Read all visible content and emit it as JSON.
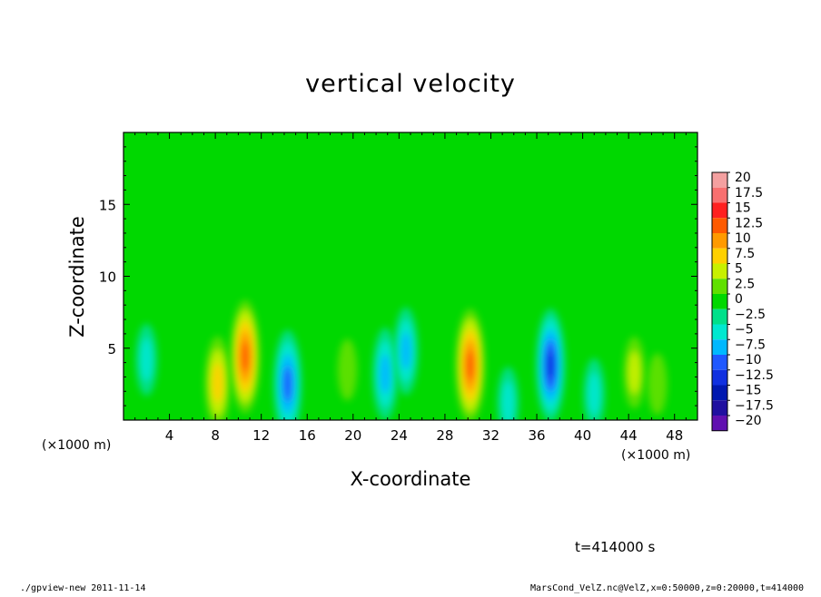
{
  "chart_data": {
    "type": "heatmap",
    "title": "vertical velocity",
    "xlabel": "X-coordinate",
    "ylabel": "Z-coordinate",
    "x_unit": "(×1000 m)",
    "y_unit": "(×1000 m)",
    "xlim": [
      0,
      50
    ],
    "ylim": [
      0,
      20
    ],
    "xticks": [
      4,
      8,
      12,
      16,
      20,
      24,
      28,
      32,
      36,
      40,
      44,
      48
    ],
    "yticks": [
      5,
      10,
      15
    ],
    "colorbar": {
      "levels": [
        20,
        17.5,
        15,
        12.5,
        10,
        7.5,
        5,
        2.5,
        0,
        -2.5,
        -5,
        -7.5,
        -10,
        -12.5,
        -15,
        -17.5,
        -20
      ],
      "labels": [
        "20",
        "17.5",
        "15",
        "12.5",
        "10",
        "7.5",
        "5",
        "2.5",
        "0",
        "−2.5",
        "−5",
        "−7.5",
        "−10",
        "−12.5",
        "−15",
        "−17.5",
        "−20"
      ],
      "colors": [
        "#f4a0a0",
        "#f87070",
        "#ff2020",
        "#ff5a00",
        "#ff9a00",
        "#ffd000",
        "#c8f000",
        "#60e000",
        "#00d800",
        "#00e08a",
        "#00e8d0",
        "#00b8ff",
        "#1f58ff",
        "#1030e0",
        "#0018b0",
        "#2010a0",
        "#6010b0"
      ]
    },
    "background_value": 0,
    "features": [
      {
        "x": 8.2,
        "z": 2.6,
        "value": 9
      },
      {
        "x": 10.6,
        "z": 4.4,
        "value": 13
      },
      {
        "x": 14.3,
        "z": 2.5,
        "value": -12
      },
      {
        "x": 19.5,
        "z": 3.5,
        "value": 3
      },
      {
        "x": 22.8,
        "z": 3.2,
        "value": -9
      },
      {
        "x": 24.6,
        "z": 4.8,
        "value": -8
      },
      {
        "x": 30.2,
        "z": 3.8,
        "value": 13
      },
      {
        "x": 37.2,
        "z": 3.8,
        "value": -13
      },
      {
        "x": 44.5,
        "z": 3.3,
        "value": 5
      },
      {
        "x": 46.5,
        "z": 2.5,
        "value": 3
      },
      {
        "x": 2.0,
        "z": 4.2,
        "value": -5
      },
      {
        "x": 33.5,
        "z": 1.2,
        "value": -5
      },
      {
        "x": 41.0,
        "z": 1.8,
        "value": -5
      }
    ]
  },
  "footer": {
    "left": "./gpview-new  2011-11-14",
    "right": "MarsCond_VelZ.nc@VelZ,x=0:50000,z=0:20000,t=414000",
    "time": "t=414000 s"
  }
}
